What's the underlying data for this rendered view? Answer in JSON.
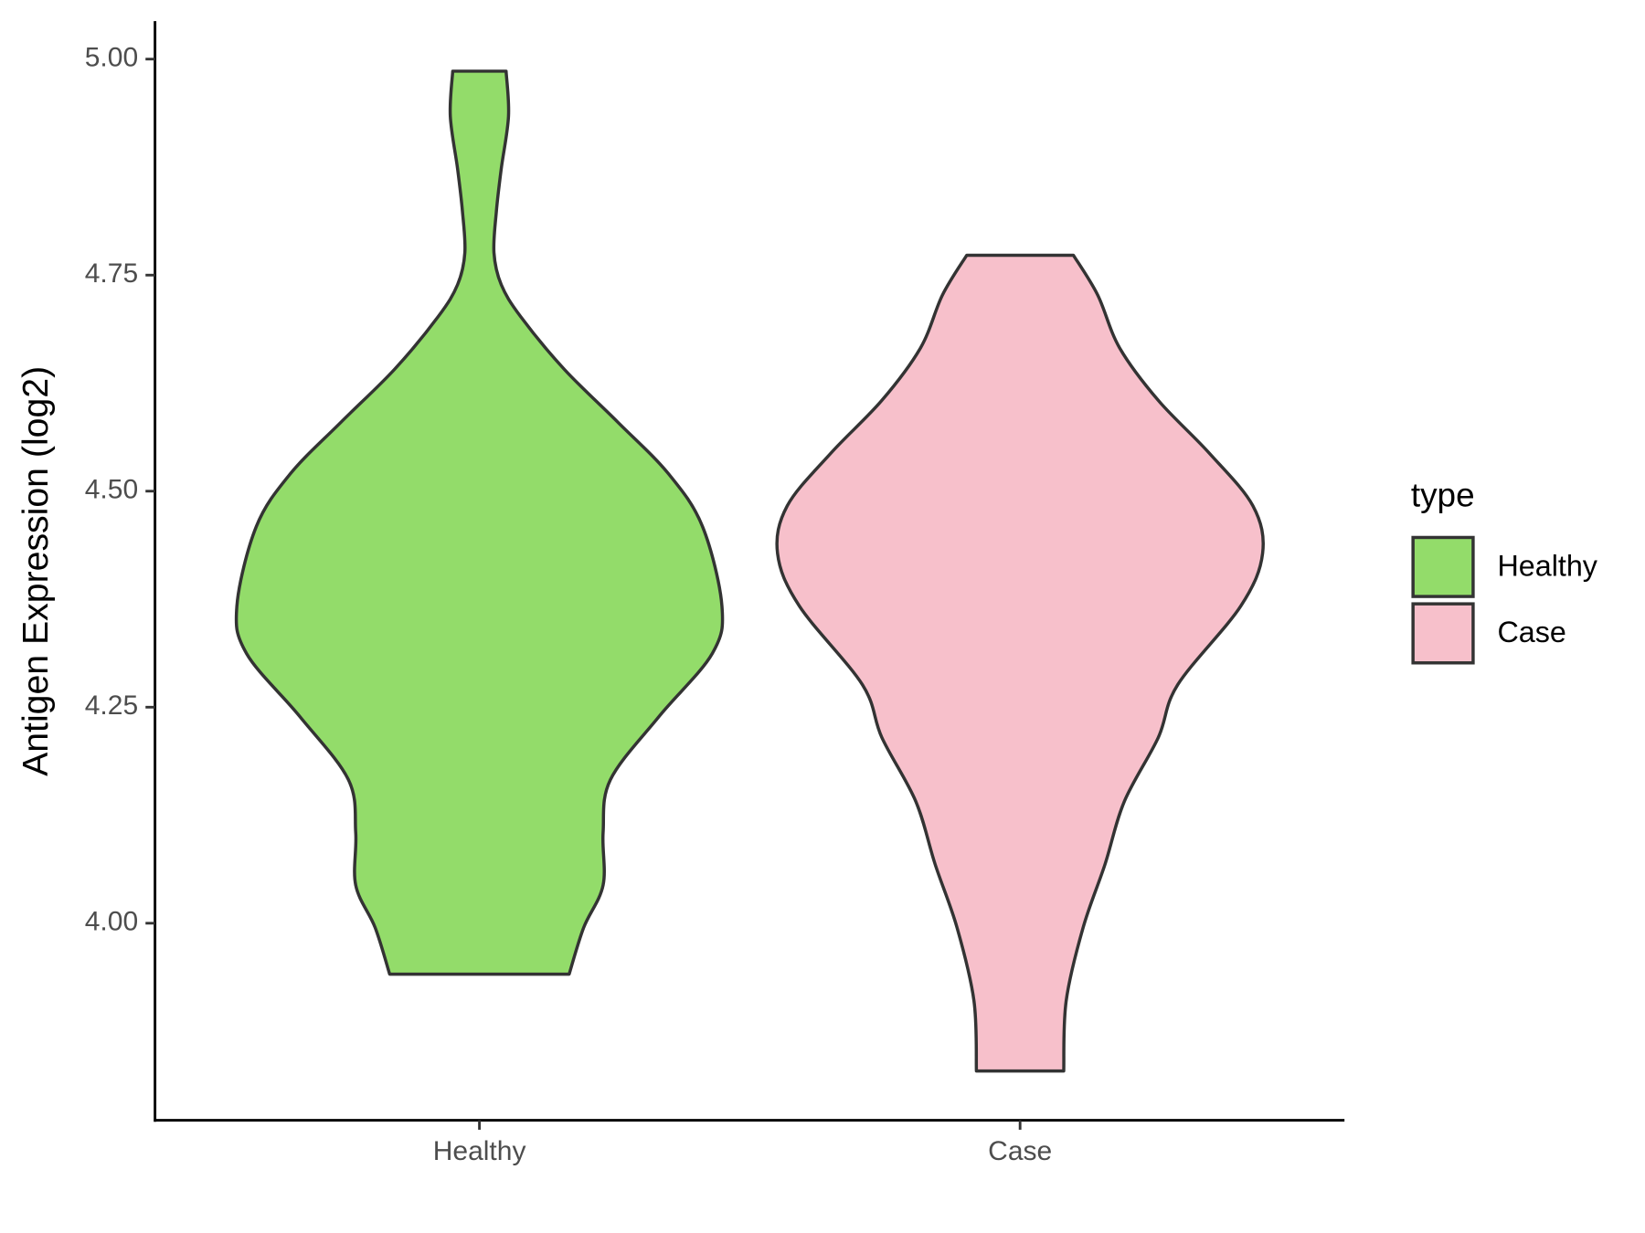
{
  "chart_data": {
    "type": "violin",
    "y_label": "Antigen Expression (log2)",
    "legend_title": "type",
    "categories": [
      "Healthy",
      "Case"
    ],
    "series": [
      {
        "name": "Healthy",
        "color": "#93dc6a",
        "values": [
          4.986,
          4.934,
          4.873,
          4.824,
          4.776,
          4.739,
          4.702,
          4.641,
          4.58,
          4.52,
          4.459,
          4.367,
          4.312,
          4.239,
          4.166,
          4.105,
          4.044,
          3.995,
          3.941
        ],
        "density": [
          0.11,
          0.12,
          0.09,
          0.07,
          0.06,
          0.09,
          0.17,
          0.35,
          0.57,
          0.78,
          0.92,
          1.0,
          0.96,
          0.74,
          0.54,
          0.51,
          0.51,
          0.43,
          0.37
        ]
      },
      {
        "name": "Case",
        "color": "#f7c0cb",
        "values": [
          4.773,
          4.727,
          4.666,
          4.605,
          4.544,
          4.483,
          4.428,
          4.367,
          4.276,
          4.215,
          4.141,
          4.068,
          3.995,
          3.91,
          3.829
        ],
        "density": [
          0.22,
          0.32,
          0.41,
          0.57,
          0.78,
          0.96,
          1.0,
          0.91,
          0.65,
          0.57,
          0.43,
          0.35,
          0.26,
          0.19,
          0.18
        ]
      }
    ],
    "ylim": [
      3.772,
      5.044
    ],
    "yticks": [
      {
        "value": 4,
        "label": "4.00"
      },
      {
        "value": 4.25,
        "label": "4.25"
      },
      {
        "value": 4.5,
        "label": "4.50"
      },
      {
        "value": 4.75,
        "label": "4.75"
      },
      {
        "value": 5,
        "label": "5.00"
      }
    ],
    "legend_position": "right"
  }
}
